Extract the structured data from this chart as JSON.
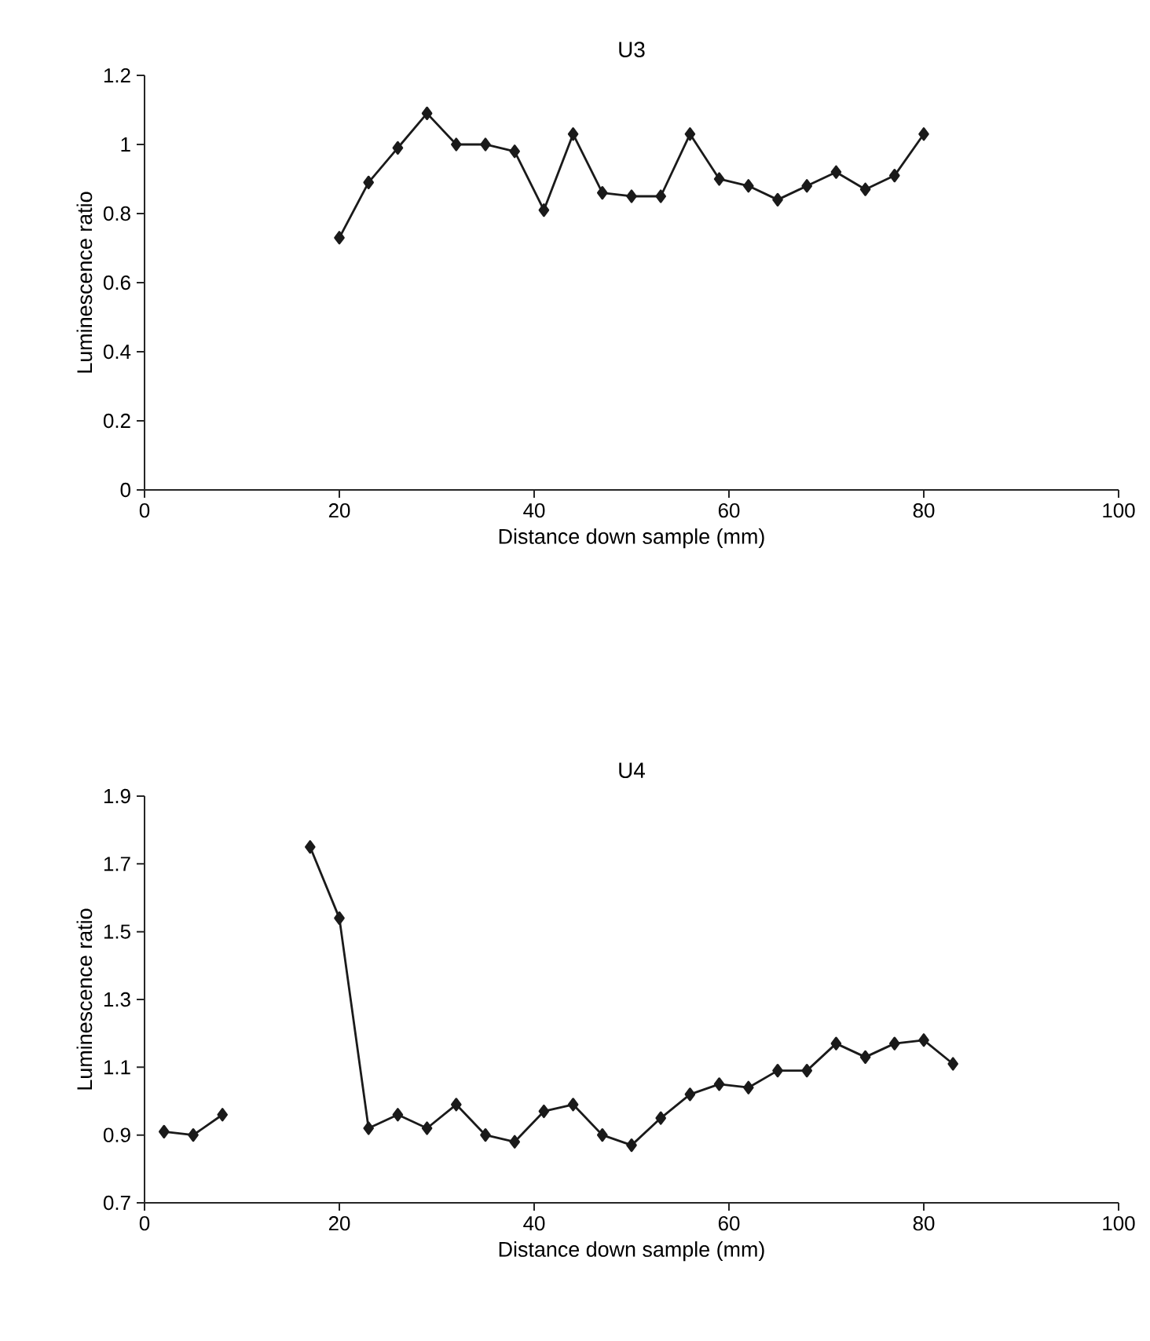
{
  "chart_data": [
    {
      "type": "line",
      "title": "U3",
      "xlabel": "Distance down sample (mm)",
      "ylabel": "Luminescence ratio",
      "marker": "diamond",
      "line_style": "solid",
      "xlim": [
        0,
        100
      ],
      "ylim": [
        0,
        1.2
      ],
      "xticks": [
        0,
        20,
        40,
        60,
        80,
        100
      ],
      "yticks": [
        0,
        0.2,
        0.4,
        0.6,
        0.8,
        1,
        1.2
      ],
      "series": [
        {
          "color": "#1a1a1a",
          "x": [
            20,
            23,
            26,
            29,
            32,
            35,
            38,
            41,
            44,
            47,
            50,
            53,
            56,
            59,
            62,
            65,
            68,
            71,
            74,
            77,
            80
          ],
          "values": [
            0.73,
            0.89,
            0.99,
            1.09,
            1.0,
            1.0,
            0.98,
            0.81,
            1.03,
            0.86,
            0.85,
            0.85,
            1.03,
            0.9,
            0.88,
            0.84,
            0.88,
            0.92,
            0.87,
            0.91,
            1.03
          ]
        }
      ]
    },
    {
      "type": "line",
      "title": "U4",
      "xlabel": "Distance down sample (mm)",
      "ylabel": "Luminescence ratio",
      "marker": "diamond",
      "line_style": "solid",
      "xlim": [
        0,
        100
      ],
      "ylim": [
        0.7,
        1.9
      ],
      "xticks": [
        0,
        20,
        40,
        60,
        80,
        100
      ],
      "yticks": [
        0.7,
        0.9,
        1.1,
        1.3,
        1.5,
        1.7,
        1.9
      ],
      "series": [
        {
          "color": "#1a1a1a",
          "x": [
            2,
            5,
            8,
            11,
            17,
            20,
            23,
            26,
            29,
            32,
            35,
            38,
            41,
            44,
            47,
            50,
            53,
            56,
            59,
            62,
            65,
            68,
            71,
            74,
            77,
            80,
            83
          ],
          "values": [
            0.91,
            0.9,
            0.96,
            null,
            1.75,
            1.54,
            0.92,
            0.96,
            0.92,
            0.99,
            0.9,
            0.88,
            0.97,
            0.99,
            0.9,
            0.87,
            0.95,
            1.02,
            1.05,
            1.04,
            1.09,
            1.09,
            1.17,
            1.13,
            1.17,
            1.18,
            1.11
          ]
        }
      ]
    }
  ]
}
